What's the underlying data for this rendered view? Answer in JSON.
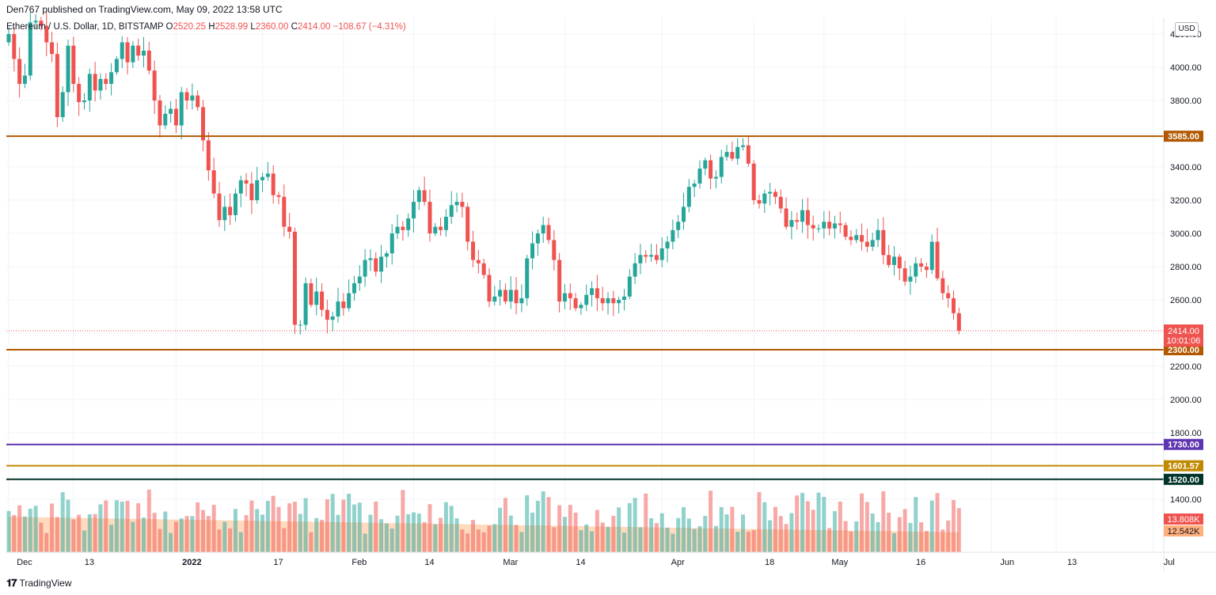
{
  "header": {
    "published": "Den767 published on TradingView.com, May 09, 2022 13:58 UTC"
  },
  "legend": {
    "symbol": "Ethereum / U.S. Dollar, 1D, BITSTAMP",
    "o_label": "O",
    "o_value": "2520.25",
    "h_label": "H",
    "h_value": "2528.99",
    "l_label": "L",
    "l_value": "2360.00",
    "c_label": "C",
    "c_value": "2414.00",
    "change": "−108.67 (−4.31%)"
  },
  "currency": "USD",
  "footer": {
    "brand": "TradingView",
    "logo": "tradingview-logo-icon"
  },
  "colors": {
    "up": "#26a69a",
    "down": "#ef5350",
    "grid": "#f0f3fa",
    "resistance": "#b25800",
    "purple": "#5e35b1",
    "gold": "#c08a00",
    "dark_green": "#00332a",
    "ma_fill": "#ffcba4"
  },
  "chart_data": {
    "type": "candlestick",
    "symbol": "ETHUSD",
    "interval": "1D",
    "y_axis": {
      "ticks": [
        "4200.00",
        "4000.00",
        "3800.00",
        "3600.00",
        "3400.00",
        "3200.00",
        "3000.00",
        "2800.00",
        "2600.00",
        "2400.00",
        "2200.00",
        "2000.00",
        "1800.00",
        "1600.00",
        "1400.00"
      ],
      "range": [
        1260,
        4250
      ],
      "side": "right"
    },
    "x_axis": {
      "ticks": [
        {
          "label": "Dec",
          "day": 0
        },
        {
          "label": "13",
          "day": 12
        },
        {
          "label": "2022",
          "day": 31
        },
        {
          "label": "17",
          "day": 47
        },
        {
          "label": "Feb",
          "day": 62
        },
        {
          "label": "14",
          "day": 75
        },
        {
          "label": "Mar",
          "day": 90
        },
        {
          "label": "14",
          "day": 103
        },
        {
          "label": "Apr",
          "day": 121
        },
        {
          "label": "18",
          "day": 138
        },
        {
          "label": "May",
          "day": 151
        },
        {
          "label": "16",
          "day": 166
        },
        {
          "label": "Jun",
          "day": 182
        },
        {
          "label": "13",
          "day": 194
        },
        {
          "label": "Jul",
          "day": 212
        }
      ]
    },
    "close": [
      4200,
      4050,
      3900,
      3950,
      4270,
      4280,
      4250,
      4150,
      4080,
      3700,
      3850,
      4130,
      3900,
      3790,
      3800,
      3960,
      3860,
      3930,
      3900,
      3970,
      4050,
      4150,
      4030,
      4130,
      4070,
      4100,
      3980,
      3800,
      3650,
      3720,
      3750,
      3650,
      3850,
      3800,
      3830,
      3760,
      3560,
      3380,
      3240,
      3080,
      3160,
      3110,
      3240,
      3320,
      3300,
      3200,
      3320,
      3340,
      3360,
      3230,
      3220,
      3040,
      3010,
      2450,
      2450,
      2700,
      2570,
      2650,
      2540,
      2480,
      2500,
      2590,
      2550,
      2640,
      2700,
      2740,
      2840,
      2850,
      2770,
      2860,
      2880,
      3000,
      3040,
      3020,
      3090,
      3190,
      3260,
      3190,
      3000,
      3040,
      3020,
      3100,
      3170,
      3190,
      3160,
      2950,
      2840,
      2820,
      2750,
      2590,
      2620,
      2660,
      2590,
      2660,
      2580,
      2610,
      2850,
      2940,
      3000,
      3050,
      2960,
      2840,
      2590,
      2640,
      2610,
      2550,
      2570,
      2630,
      2670,
      2610,
      2580,
      2610,
      2580,
      2600,
      2620,
      2740,
      2820,
      2870,
      2860,
      2870,
      2840,
      2910,
      2950,
      3020,
      3070,
      3160,
      3280,
      3300,
      3390,
      3440,
      3330,
      3340,
      3460,
      3490,
      3450,
      3520,
      3530,
      3420,
      3200,
      3180,
      3240,
      3250,
      3220,
      3150,
      3040,
      3080,
      3070,
      3140,
      3050,
      3030,
      3030,
      3070,
      3030,
      3060,
      3050,
      2980,
      2960,
      2990,
      2950,
      2920,
      2960,
      3020,
      2870,
      2810,
      2860,
      2790,
      2710,
      2740,
      2820,
      2800,
      2780,
      2950,
      2730,
      2640,
      2610,
      2520,
      2414
    ],
    "series_current_price": {
      "value": "2414.00",
      "countdown": "10:01:06"
    },
    "horizontal_lines": [
      {
        "value": 3585.0,
        "label": "3585.00",
        "color": "#b25800"
      },
      {
        "value": 2300.0,
        "label": "2300.00",
        "color": "#b25800"
      },
      {
        "value": 1730.0,
        "label": "1730.00",
        "color": "#5e35b1"
      },
      {
        "value": 1601.57,
        "label": "1601.57",
        "color": "#c08a00"
      },
      {
        "value": 1520.0,
        "label": "1520.00",
        "color": "#00332a"
      }
    ],
    "volume": {
      "labels": [
        {
          "value": "13.808K",
          "color": "#ef5350"
        },
        {
          "value": "12.542K",
          "color": "#ffb07c"
        }
      ]
    },
    "grid": true
  }
}
